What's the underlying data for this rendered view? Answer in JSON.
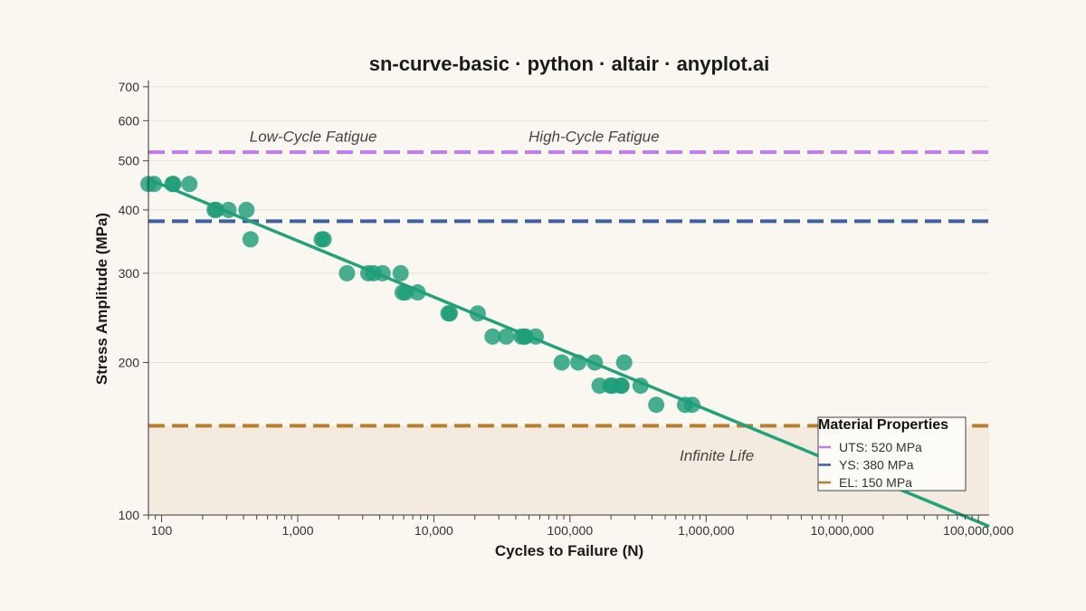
{
  "chart_data": {
    "type": "scatter",
    "title": "sn-curve-basic · python · altair · anyplot.ai",
    "xlabel": "Cycles to Failure (N)",
    "ylabel": "Stress Amplitude (MPa)",
    "x_scale": "log",
    "y_scale": "log",
    "xlim": [
      80,
      120000000
    ],
    "ylim": [
      100,
      720
    ],
    "x_ticks": [
      {
        "value": 100,
        "label": "100"
      },
      {
        "value": 1000,
        "label": "1,000"
      },
      {
        "value": 10000,
        "label": "10,000"
      },
      {
        "value": 100000,
        "label": "100,000"
      },
      {
        "value": 1000000,
        "label": "1,000,000"
      },
      {
        "value": 10000000,
        "label": "10,000,000"
      },
      {
        "value": 100000000,
        "label": "100,000,000"
      }
    ],
    "y_ticks": [
      {
        "value": 100,
        "label": "100"
      },
      {
        "value": 200,
        "label": "200"
      },
      {
        "value": 300,
        "label": "300"
      },
      {
        "value": 400,
        "label": "400"
      },
      {
        "value": 500,
        "label": "500"
      },
      {
        "value": 600,
        "label": "600"
      },
      {
        "value": 700,
        "label": "700"
      }
    ],
    "grid": true,
    "points": {
      "color": "#1f9e78",
      "x": [
        80,
        88,
        120,
        122,
        160,
        245,
        252,
        310,
        420,
        450,
        1500,
        1550,
        2300,
        3300,
        3600,
        4200,
        5700,
        5900,
        6200,
        7600,
        12800,
        13100,
        21000,
        27000,
        34000,
        44000,
        46000,
        47000,
        56000,
        87000,
        115000,
        152000,
        165000,
        198000,
        205000,
        237000,
        239000,
        250000,
        330000,
        430000,
        700000,
        790000
      ],
      "y": [
        450,
        450,
        450,
        450,
        450,
        400,
        400,
        400,
        400,
        350,
        350,
        350,
        300,
        300,
        300,
        300,
        300,
        275,
        275,
        275,
        250,
        250,
        250,
        225,
        225,
        225,
        225,
        225,
        225,
        200,
        200,
        200,
        180,
        180,
        180,
        180,
        180,
        200,
        180,
        165,
        165,
        165
      ]
    },
    "fit_line": {
      "color": "#24a07a",
      "x": [
        80,
        120000000
      ],
      "y": [
        460,
        95
      ]
    },
    "reference_lines": [
      {
        "label": "UTS: 520 MPa",
        "value": 520,
        "color": "#bf7de8"
      },
      {
        "label": "YS: 380 MPa",
        "value": 380,
        "color": "#3f5f9f"
      },
      {
        "label": "EL: 150 MPa",
        "value": 150,
        "color": "#b77f2f"
      }
    ],
    "infinite_life_fill": "#f3ebe0",
    "region_labels": [
      {
        "text": "Low-Cycle Fatigue",
        "x": 1300,
        "y": 545
      },
      {
        "text": "High-Cycle Fatigue",
        "x": 150000,
        "y": 545
      },
      {
        "text": "Infinite Life",
        "x": 1200000,
        "y": 128
      }
    ],
    "legend": {
      "title": "Material Properties",
      "position": "bottom-right"
    }
  }
}
